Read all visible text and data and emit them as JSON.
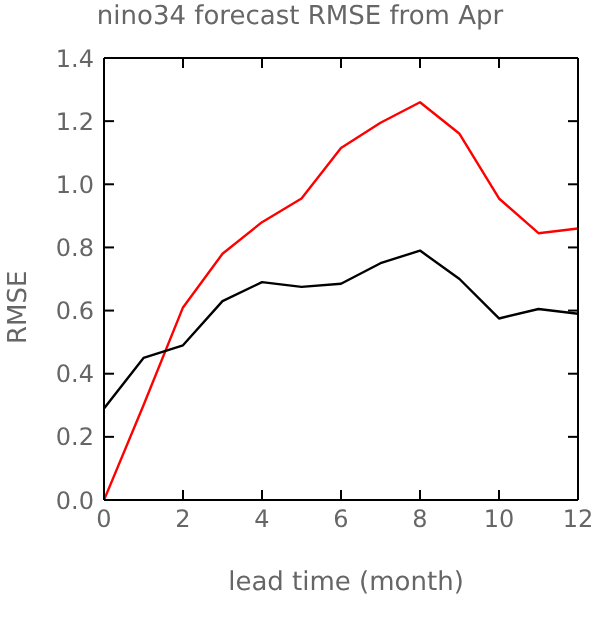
{
  "chart_data": {
    "type": "line",
    "title": "nino34 forecast RMSE from Apr",
    "xlabel": "lead time (month)",
    "ylabel": "RMSE",
    "x": [
      0,
      1,
      2,
      3,
      4,
      5,
      6,
      7,
      8,
      9,
      10,
      11,
      12
    ],
    "series": [
      {
        "color": "#ff0000",
        "values": [
          0,
          0.3,
          0.61,
          0.78,
          0.88,
          0.955,
          1.115,
          1.195,
          1.26,
          1.16,
          0.955,
          0.845,
          0.86
        ]
      },
      {
        "color": "#000000",
        "values": [
          0.29,
          0.45,
          0.49,
          0.63,
          0.69,
          0.675,
          0.685,
          0.75,
          0.79,
          0.7,
          0.575,
          0.605,
          0.59
        ]
      }
    ],
    "xlim": [
      0,
      12
    ],
    "xticks": [
      0,
      2,
      4,
      6,
      8,
      10,
      12
    ],
    "ylim": [
      0,
      1.4
    ],
    "yticks": [
      {
        "value": 0,
        "label": "0.0"
      },
      {
        "value": 0.2,
        "label": "0.2"
      },
      {
        "value": 0.4,
        "label": "0.4"
      },
      {
        "value": 0.6,
        "label": "0.6"
      },
      {
        "value": 0.8,
        "label": "0.8"
      },
      {
        "value": 1,
        "label": "1.0"
      },
      {
        "value": 1.2,
        "label": "1.2"
      },
      {
        "value": 1.4,
        "label": "1.4"
      }
    ],
    "grid": false,
    "marker": "none",
    "line_style": "solid"
  }
}
